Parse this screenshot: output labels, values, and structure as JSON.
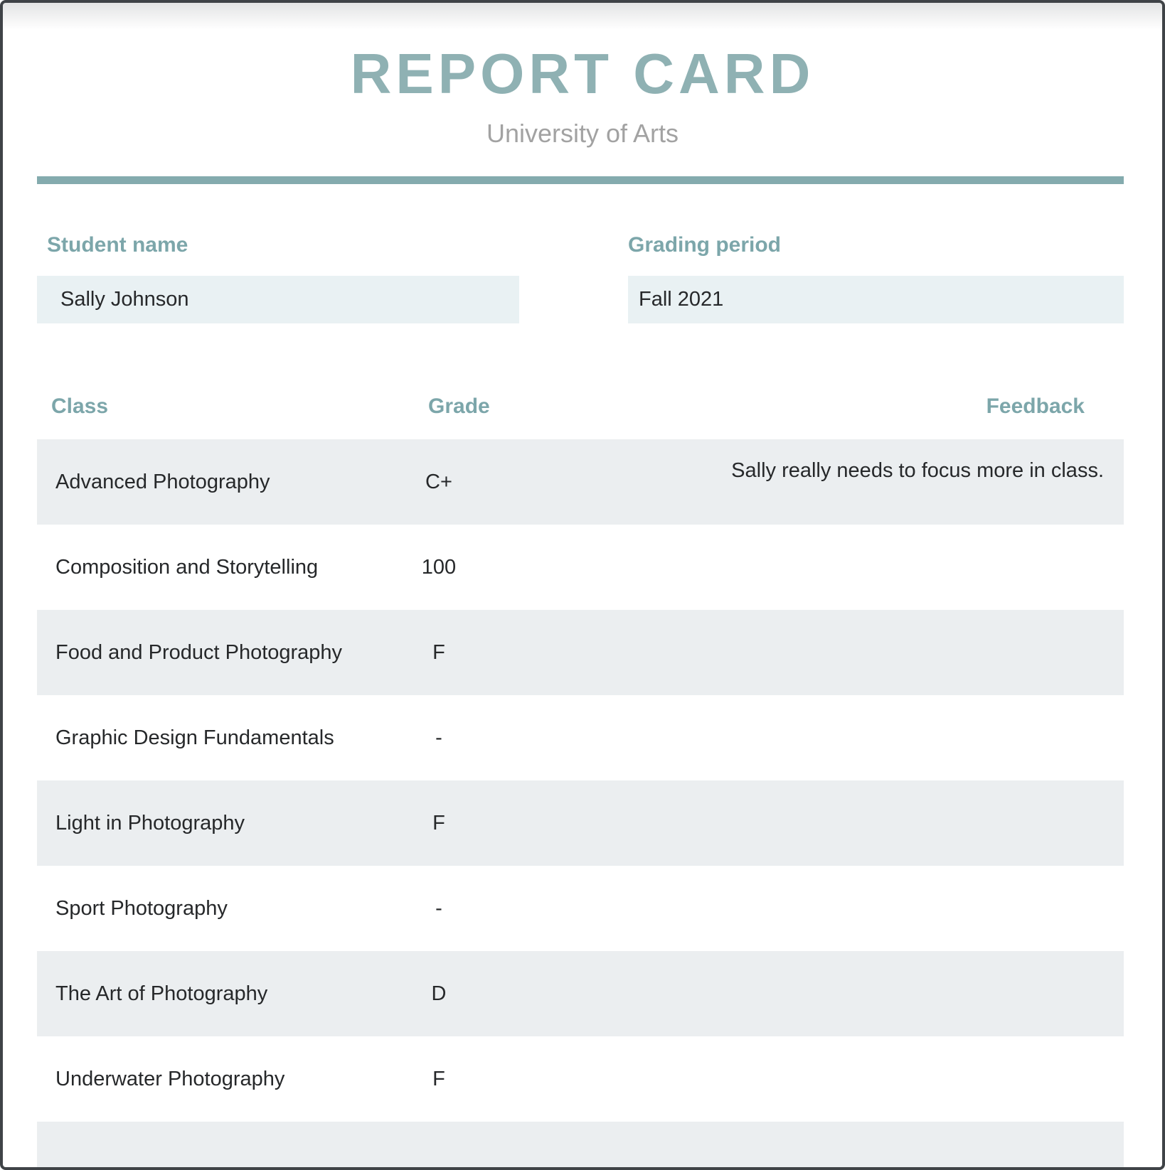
{
  "header": {
    "title": "REPORT CARD",
    "subtitle": "University of Arts"
  },
  "student": {
    "label": "Student name",
    "value": "Sally Johnson"
  },
  "grading_period": {
    "label": "Grading period",
    "value": "Fall 2021"
  },
  "table": {
    "columns": [
      "Class",
      "Grade",
      "Feedback"
    ],
    "rows": [
      {
        "class": "Advanced Photography",
        "grade": "C+",
        "feedback": "Sally really needs to focus more in class."
      },
      {
        "class": "Composition and Storytelling",
        "grade": "100",
        "feedback": ""
      },
      {
        "class": "Food and Product Photography",
        "grade": "F",
        "feedback": ""
      },
      {
        "class": "Graphic Design Fundamentals",
        "grade": "-",
        "feedback": ""
      },
      {
        "class": "Light in Photography",
        "grade": "F",
        "feedback": ""
      },
      {
        "class": "Sport Photography",
        "grade": "-",
        "feedback": ""
      },
      {
        "class": "The Art of Photography",
        "grade": "D",
        "feedback": ""
      },
      {
        "class": "Underwater Photography",
        "grade": "F",
        "feedback": ""
      },
      {
        "class": "",
        "grade": "",
        "feedback": ""
      }
    ]
  },
  "colors": {
    "title_teal": "#8fb1b3",
    "label_teal": "#7ca6aa",
    "divider_teal": "#84abae",
    "field_background": "#e9f1f3",
    "row_background": "#ebeef0",
    "frame_border": "#3f4347",
    "subtitle_gray": "#a2a2a2",
    "body_text": "#26282a"
  }
}
